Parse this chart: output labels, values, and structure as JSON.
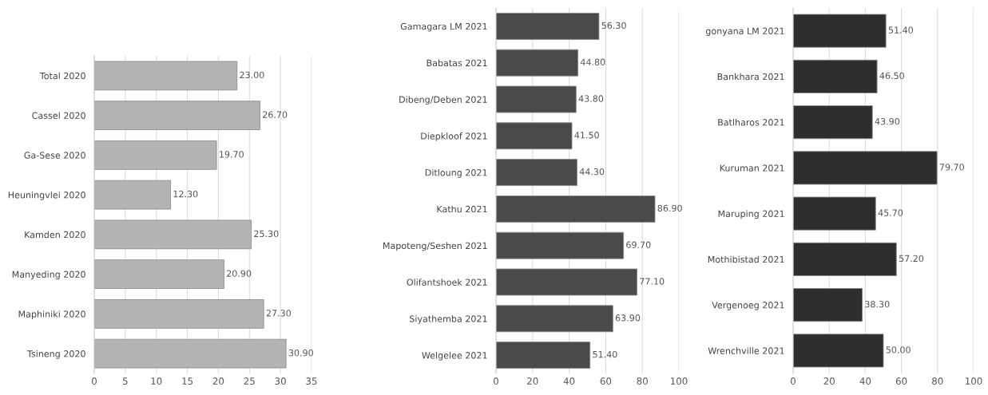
{
  "chart_data": [
    {
      "type": "bar",
      "orientation": "horizontal",
      "categories": [
        "Total 2020",
        "Cassel 2020",
        "Ga-Sese 2020",
        "Heuningvlei 2020",
        "Kamden 2020",
        "Manyeding 2020",
        "Maphiniki 2020",
        "Tsineng 2020"
      ],
      "series": [
        {
          "color": "#b4b4b4",
          "values": [
            23.0,
            26.7,
            19.7,
            12.3,
            25.3,
            20.9,
            27.3,
            30.9
          ],
          "value_labels": [
            "23.00",
            "26.70",
            "19.70",
            "12.30",
            "25.30",
            "20.90",
            "27.30",
            "30.90"
          ]
        }
      ],
      "xlim": [
        0,
        35
      ],
      "xticks": [
        0,
        5,
        10,
        15,
        20,
        25,
        30,
        35
      ],
      "grid": "x"
    },
    {
      "type": "bar",
      "orientation": "horizontal",
      "categories": [
        "Gamagara LM 2021",
        "Babatas 2021",
        "Dibeng/Deben 2021",
        "Diepkloof 2021",
        "Ditloung 2021",
        "Kathu 2021",
        "Mapoteng/Seshen 2021",
        "Olifantshoek 2021",
        "Siyathemba 2021",
        "Welgelee 2021"
      ],
      "series": [
        {
          "color": "#4a4a4a",
          "values": [
            56.3,
            44.8,
            43.8,
            41.5,
            44.3,
            86.9,
            69.7,
            77.1,
            63.9,
            51.4
          ],
          "value_labels": [
            "56.30",
            "44.80",
            "43.80",
            "41.50",
            "44.30",
            "86.90",
            "69.70",
            "77.10",
            "63.90",
            "51.40"
          ]
        }
      ],
      "xlim": [
        0,
        100
      ],
      "xticks": [
        0,
        20,
        40,
        60,
        80,
        100
      ],
      "grid": "x"
    },
    {
      "type": "bar",
      "orientation": "horizontal",
      "categories": [
        "gonyana LM 2021",
        "Bankhara 2021",
        "Batlharos 2021",
        "Kuruman 2021",
        "Maruping 2021",
        "Mothibistad 2021",
        "Vergenoeg 2021",
        "Wrenchville 2021"
      ],
      "series": [
        {
          "color": "#2e2e2e",
          "values": [
            51.4,
            46.5,
            43.9,
            79.7,
            45.7,
            57.2,
            38.3,
            50.0
          ],
          "value_labels": [
            "51.40",
            "46.50",
            "43.90",
            "79.70",
            "45.70",
            "57.20",
            "38.30",
            "50.00"
          ]
        }
      ],
      "xlim": [
        0,
        100
      ],
      "xticks": [
        0,
        20,
        40,
        60,
        80,
        100
      ],
      "grid": "x"
    }
  ]
}
